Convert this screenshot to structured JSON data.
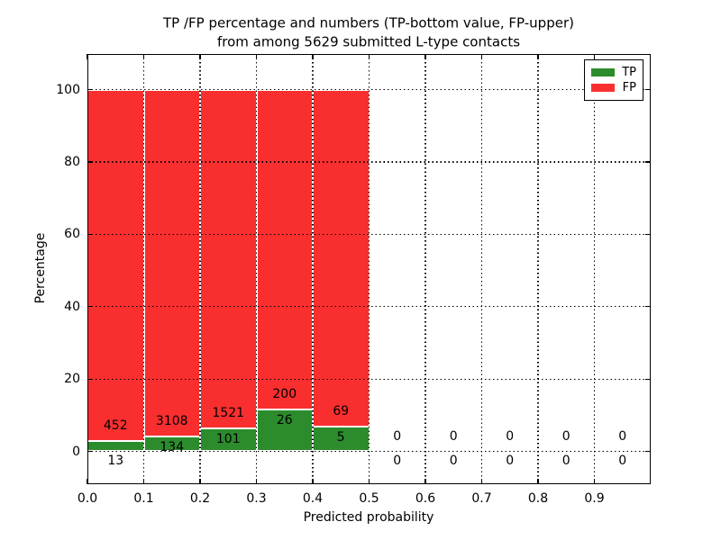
{
  "header": {
    "title_line1": "TP /FP percentage and numbers (TP-bottom value, FP-upper)",
    "title_line2": "from among 5629 submitted L-type contacts"
  },
  "chart_data": {
    "type": "bar",
    "stacked": true,
    "normalized": "each non-empty bin is scaled so TP% + FP% = 100",
    "title": "TP /FP percentage and numbers (TP-bottom value, FP-upper)\nfrom among 5629 submitted L-type contacts",
    "xlabel": "Predicted probability",
    "ylabel": "Percentage",
    "total_submitted": 5629,
    "bin_start": [
      0.0,
      0.1,
      0.2,
      0.3,
      0.4,
      0.5,
      0.6,
      0.7,
      0.8,
      0.9
    ],
    "bin_width": 0.1,
    "series": [
      {
        "name": "TP",
        "color": "#2c8b2c",
        "counts": [
          13,
          134,
          101,
          26,
          5,
          0,
          0,
          0,
          0,
          0
        ]
      },
      {
        "name": "FP",
        "color": "#f92f2f",
        "counts": [
          452,
          3108,
          1521,
          200,
          69,
          0,
          0,
          0,
          0,
          0
        ]
      }
    ],
    "xtick_labels": [
      "0.0",
      "0.1",
      "0.2",
      "0.3",
      "0.4",
      "0.5",
      "0.6",
      "0.7",
      "0.8",
      "0.9"
    ],
    "ytick_values": [
      0,
      20,
      40,
      60,
      80,
      100
    ],
    "xlim": [
      0.0,
      1.0
    ],
    "ylim": [
      -9,
      110
    ],
    "grid": {
      "style": "dotted",
      "color": "#000000",
      "above_bars": true
    },
    "legend": {
      "position": "upper right",
      "entries": [
        "TP",
        "FP"
      ]
    },
    "bar_edge_color": "#ffffff"
  }
}
